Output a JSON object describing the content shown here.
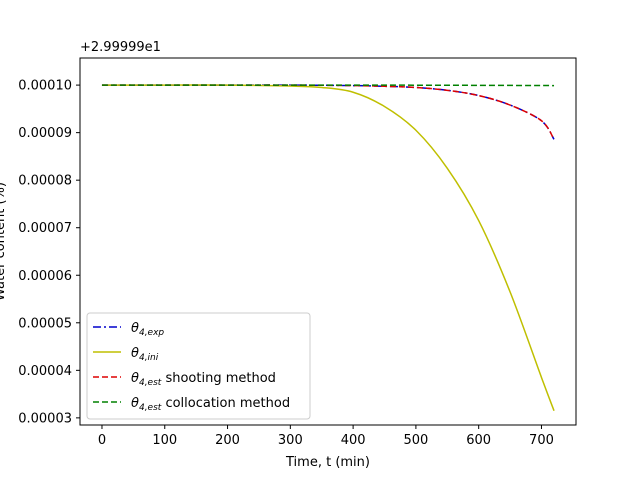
{
  "chart_data": {
    "type": "line",
    "title": "",
    "xlabel": "Time, t (min)",
    "ylabel": "Water content (%)",
    "y_offset_label": "+2.99999e1",
    "xlim": [
      -35,
      755
    ],
    "ylim": [
      2.85e-05,
      0.0001057
    ],
    "x_ticks": [
      0,
      100,
      200,
      300,
      400,
      500,
      600,
      700
    ],
    "x_tick_labels": [
      "0",
      "100",
      "200",
      "300",
      "400",
      "500",
      "600",
      "700"
    ],
    "y_ticks": [
      3e-05,
      4e-05,
      5e-05,
      6e-05,
      7e-05,
      8e-05,
      9e-05,
      0.0001
    ],
    "y_tick_labels": [
      "0.00003",
      "0.00004",
      "0.00005",
      "0.00006",
      "0.00007",
      "0.00008",
      "0.00009",
      "0.00010"
    ],
    "grid": false,
    "legend_position": "lower-left",
    "series": [
      {
        "name": "θ_{4,exp}",
        "legend_main": "θ",
        "legend_sub": "4, exp",
        "legend_suffix": "",
        "color": "#0000cc",
        "dash": "8,3,2,3",
        "x": [
          0,
          100,
          200,
          300,
          400,
          450,
          500,
          550,
          600,
          650,
          700,
          720
        ],
        "y": [
          0.0001,
          0.0001,
          0.0001,
          0.0001,
          9.99e-05,
          9.975e-05,
          9.95e-05,
          9.89e-05,
          9.78e-05,
          9.58e-05,
          9.25e-05,
          8.86e-05
        ]
      },
      {
        "name": "θ_{4,ini}",
        "legend_main": "θ",
        "legend_sub": "4, ini",
        "legend_suffix": "",
        "color": "#bfbf00",
        "dash": "",
        "x": [
          0,
          100,
          200,
          300,
          350,
          400,
          450,
          500,
          550,
          600,
          650,
          700,
          720
        ],
        "y": [
          0.0001,
          0.0001,
          0.0001,
          9.98e-05,
          9.95e-05,
          9.85e-05,
          9.55e-05,
          9.05e-05,
          8.25e-05,
          7.15e-05,
          5.65e-05,
          3.85e-05,
          3.15e-05
        ]
      },
      {
        "name": "θ_{4,est} shooting method",
        "legend_main": "θ",
        "legend_sub": "4, est",
        "legend_suffix": " shooting method",
        "color": "#dd0000",
        "dash": "6,3",
        "x": [
          0,
          100,
          200,
          300,
          400,
          450,
          500,
          550,
          600,
          650,
          700,
          720
        ],
        "y": [
          0.0001,
          0.0001,
          0.0001,
          0.0001,
          9.99e-05,
          9.975e-05,
          9.95e-05,
          9.89e-05,
          9.78e-05,
          9.58e-05,
          9.25e-05,
          8.86e-05
        ]
      },
      {
        "name": "θ_{4,est} collocation method",
        "legend_main": "θ",
        "legend_sub": "4, est",
        "legend_suffix": " collocation method",
        "color": "#008000",
        "dash": "6,3",
        "x": [
          0,
          100,
          200,
          300,
          400,
          500,
          600,
          700,
          720
        ],
        "y": [
          0.0001,
          0.0001,
          0.0001,
          0.0001,
          0.0001,
          9.998e-05,
          9.995e-05,
          9.991e-05,
          9.99e-05
        ]
      }
    ]
  }
}
